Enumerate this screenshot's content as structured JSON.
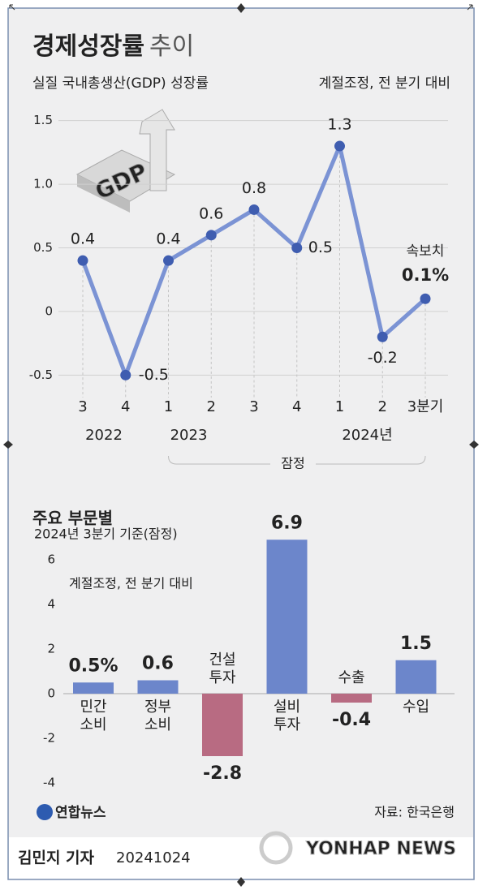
{
  "chart_data": [
    {
      "type": "line",
      "title": "경제성장률",
      "title_suffix": "추이",
      "subtitle": "실질 국내총생산(GDP) 성장률",
      "note": "계절조정, 전 분기 대비",
      "icon_text": "GDP",
      "categories": [
        "3",
        "4",
        "1",
        "2",
        "3",
        "4",
        "1",
        "2",
        "3분기"
      ],
      "year_labels": [
        "2022",
        "2023",
        "2024년"
      ],
      "bracket_label": "잠정",
      "flash_label": "속보치",
      "values": [
        0.4,
        -0.5,
        0.4,
        0.6,
        0.8,
        0.5,
        1.3,
        -0.2,
        0.1
      ],
      "value_labels": [
        "0.4",
        "-0.5",
        "0.4",
        "0.6",
        "0.8",
        "0.5",
        "1.3",
        "-0.2",
        "0.1%"
      ],
      "color": "#7b93d4",
      "marker_color": "#3f5db0",
      "label_color": "#24397a",
      "ylim": [
        -0.6,
        1.6
      ],
      "yticks": [
        -0.5,
        0,
        0.5,
        {
          "value": 1,
          "label": "1.0"
        },
        1.5
      ],
      "grid": true
    },
    {
      "type": "bar",
      "title": "주요 부문별",
      "subtitle": "2024년 3분기 기준(잠정)",
      "note": "계절조정, 전 분기 대비",
      "categories": [
        "민간 소비",
        "정부 소비",
        "건설 투자",
        "설비 투자",
        "수출",
        "수입"
      ],
      "values": [
        0.5,
        0.6,
        -2.8,
        6.9,
        -0.4,
        1.5
      ],
      "value_labels": [
        "0.5%",
        "0.6",
        "-2.8",
        "6.9",
        "-0.4",
        "1.5"
      ],
      "positive_color": "#6c86cb",
      "negative_color": "#b86b82",
      "positive_label_color": "#2b4796",
      "negative_label_color": "#9c3150",
      "ylim": [
        -4.4,
        7.2
      ],
      "yticks": [
        -4,
        -2,
        0,
        2,
        4,
        6
      ],
      "grid": false
    }
  ],
  "footer": {
    "logo": "연합뉴스",
    "source": "자료: 한국은행",
    "reporter": "김민지 기자",
    "date": "20241024",
    "watermark": "YONHAP NEWS"
  }
}
